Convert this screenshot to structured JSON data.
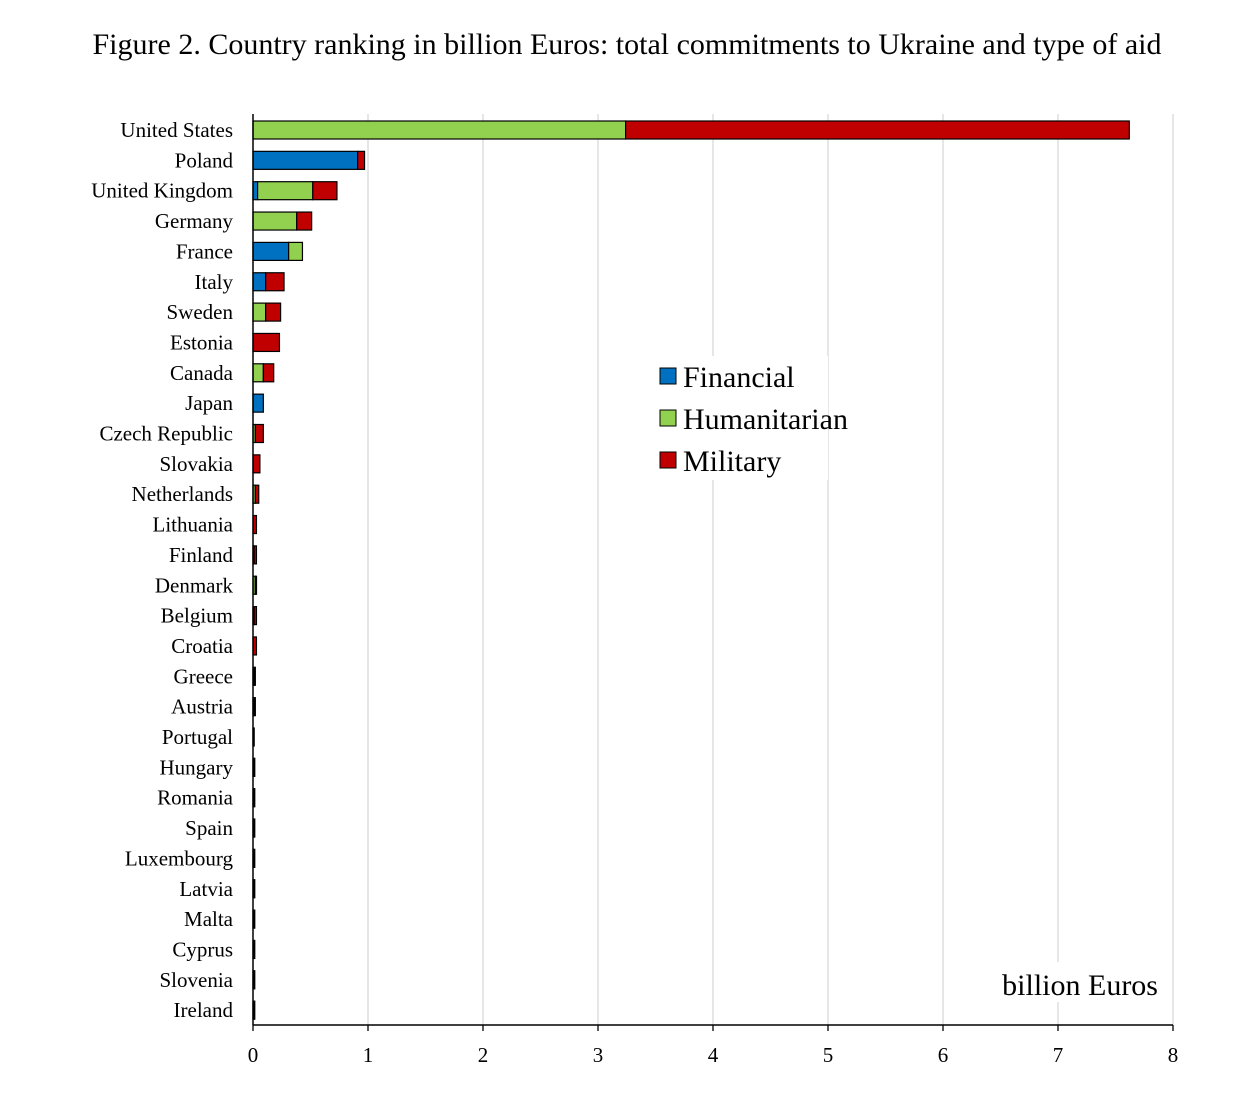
{
  "title": "Figure 2. Country ranking in billion Euros: total commitments to Ukraine and type of aid",
  "unit_label": "billion Euros",
  "colors": {
    "financial": "#0070c0",
    "humanitarian": "#92d050",
    "military": "#c00000",
    "grid": "#d9d9d9",
    "axis": "#000000"
  },
  "chart_data": {
    "type": "bar",
    "orientation": "horizontal",
    "stacked": true,
    "categories": [
      "United States",
      "Poland",
      "United Kingdom",
      "Germany",
      "France",
      "Italy",
      "Sweden",
      "Estonia",
      "Canada",
      "Japan",
      "Czech Republic",
      "Slovakia",
      "Netherlands",
      "Lithuania",
      "Finland",
      "Denmark",
      "Belgium",
      "Croatia",
      "Greece",
      "Austria",
      "Portugal",
      "Hungary",
      "Romania",
      "Spain",
      "Luxembourg",
      "Latvia",
      "Malta",
      "Cyprus",
      "Slovenia",
      "Ireland"
    ],
    "series": [
      {
        "name": "Financial",
        "color": "#0070c0",
        "values": [
          0,
          0.91,
          0.04,
          0,
          0.31,
          0.11,
          0,
          0,
          0,
          0.09,
          0,
          0,
          0,
          0,
          0,
          0,
          0,
          0,
          0,
          0,
          0,
          0,
          0,
          0,
          0,
          0,
          0,
          0,
          0,
          0
        ]
      },
      {
        "name": "Humanitarian",
        "color": "#92d050",
        "values": [
          3.24,
          0,
          0.48,
          0.38,
          0.12,
          0,
          0.11,
          0,
          0.09,
          0,
          0.02,
          0,
          0.02,
          0,
          0.01,
          0.02,
          0.01,
          0,
          0.01,
          0.01,
          0,
          0.005,
          0.005,
          0.005,
          0.005,
          0.005,
          0.005,
          0.005,
          0.005,
          0.005
        ]
      },
      {
        "name": "Military",
        "color": "#c00000",
        "values": [
          4.38,
          0.06,
          0.21,
          0.13,
          0,
          0.16,
          0.13,
          0.23,
          0.09,
          0,
          0.07,
          0.06,
          0.03,
          0.03,
          0.02,
          0.01,
          0.02,
          0.03,
          0.01,
          0.01,
          0.01,
          0.005,
          0.005,
          0.005,
          0.005,
          0.005,
          0.005,
          0.005,
          0.005,
          0.005
        ]
      }
    ],
    "xlim": [
      0,
      8
    ],
    "xticks": [
      "0",
      "1",
      "2",
      "3",
      "4",
      "5",
      "6",
      "7",
      "8"
    ],
    "grid": true,
    "legend": {
      "position": "center-right",
      "items": [
        "Financial",
        "Humanitarian",
        "Military"
      ]
    }
  }
}
